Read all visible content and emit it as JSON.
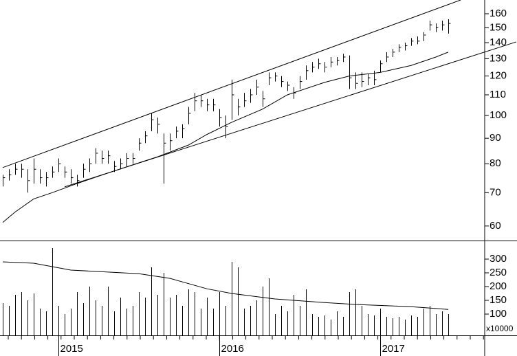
{
  "chart_data": [
    {
      "type": "ohlc",
      "log_scale": true,
      "ylim": [
        56.1,
        170.5
      ],
      "yticks": [
        60,
        70,
        80,
        90,
        100,
        110,
        120,
        130,
        140,
        150,
        160
      ],
      "high": [
        76,
        78,
        80,
        80,
        78,
        82,
        78,
        77,
        79,
        82,
        79,
        78,
        76,
        80,
        82,
        86,
        85,
        85,
        81,
        82,
        84,
        84,
        90,
        93,
        101,
        99,
        92,
        92,
        95,
        96,
        104,
        111,
        110,
        108,
        108,
        103,
        100,
        118,
        108,
        111,
        113,
        118,
        112,
        122,
        122,
        120,
        117,
        114,
        120,
        126,
        128,
        130,
        128,
        131,
        131,
        133,
        132,
        122,
        122,
        121,
        123,
        129,
        134,
        136,
        139,
        140,
        143,
        144,
        147,
        155,
        153,
        155,
        156
      ],
      "low": [
        72,
        74,
        76,
        75,
        70,
        73,
        73,
        72,
        75,
        77,
        75,
        73,
        72,
        75,
        77,
        80,
        80,
        80,
        77,
        78,
        79,
        80,
        85,
        88,
        93,
        92,
        73,
        85,
        90,
        90,
        96,
        102,
        104,
        102,
        102,
        95,
        90,
        98,
        100,
        104,
        106,
        110,
        104,
        115,
        117,
        114,
        112,
        108,
        113,
        118,
        122,
        124,
        122,
        125,
        126,
        128,
        113,
        113,
        114,
        115,
        115,
        122,
        128,
        131,
        134,
        135,
        138,
        139,
        141,
        148,
        147,
        148,
        146
      ],
      "close": [
        75,
        76,
        78,
        78,
        74,
        78,
        75,
        75,
        77,
        80,
        77,
        75,
        74,
        78,
        80,
        84,
        82,
        83,
        79,
        80,
        82,
        82,
        88,
        91,
        98,
        96,
        88,
        89,
        93,
        94,
        101,
        107,
        107,
        105,
        105,
        99,
        95,
        110,
        104,
        107,
        110,
        114,
        108,
        119,
        120,
        117,
        115,
        111,
        117,
        123,
        125,
        127,
        125,
        128,
        129,
        131,
        119,
        116,
        117,
        119,
        118,
        127,
        131,
        134,
        137,
        138,
        141,
        141,
        145,
        152,
        150,
        152,
        153
      ],
      "moving_average": {
        "x": [
          0,
          2,
          5,
          8,
          12,
          16,
          21,
          25,
          30,
          33,
          37,
          42,
          46,
          52,
          56,
          61,
          66,
          70,
          72
        ],
        "values": [
          61,
          64,
          68,
          70,
          73,
          75.9,
          79.6,
          82.6,
          87.2,
          91.6,
          96.9,
          103,
          110,
          116.5,
          120,
          122,
          126,
          131,
          134
        ]
      },
      "trendlines": [
        {
          "x": [
            0,
            74
          ],
          "values": [
            78.6,
            170.5
          ]
        },
        {
          "x": [
            10,
            83
          ],
          "values": [
            71.9,
            140.5
          ]
        }
      ]
    },
    {
      "type": "bar",
      "unit_label": "x10000",
      "categories": [
        null,
        null,
        null,
        null,
        null,
        null,
        null,
        null,
        null,
        "2015",
        null,
        null,
        null,
        null,
        null,
        null,
        null,
        null,
        null,
        null,
        null,
        null,
        null,
        null,
        null,
        null,
        null,
        null,
        null,
        null,
        null,
        null,
        null,
        null,
        null,
        "2016",
        null,
        null,
        null,
        null,
        null,
        null,
        null,
        null,
        null,
        null,
        null,
        null,
        null,
        null,
        null,
        null,
        null,
        null,
        null,
        null,
        null,
        null,
        null,
        null,
        null,
        "2017",
        null,
        null,
        null,
        null,
        null,
        null,
        null,
        null,
        null,
        null,
        null
      ],
      "values": [
        140,
        130,
        170,
        180,
        150,
        175,
        120,
        110,
        340,
        130,
        100,
        120,
        180,
        140,
        200,
        150,
        130,
        200,
        110,
        160,
        120,
        130,
        180,
        160,
        270,
        170,
        250,
        160,
        170,
        130,
        190,
        180,
        120,
        160,
        120,
        180,
        130,
        290,
        270,
        120,
        130,
        150,
        200,
        230,
        100,
        130,
        110,
        170,
        130,
        190,
        100,
        90,
        95,
        80,
        110,
        90,
        180,
        190,
        130,
        100,
        95,
        120,
        90,
        85,
        90,
        80,
        95,
        90,
        120,
        130,
        100,
        110,
        100
      ],
      "ylim": [
        22.5,
        362.5
      ],
      "yticks": [
        100,
        150,
        200,
        250,
        300
      ],
      "moving_average": {
        "x": [
          0,
          5,
          11,
          22,
          27,
          33,
          37,
          44,
          52,
          57,
          66,
          72
        ],
        "values": [
          290,
          285,
          260,
          247,
          230,
          192,
          175,
          155,
          142,
          135,
          127,
          117
        ]
      }
    }
  ]
}
